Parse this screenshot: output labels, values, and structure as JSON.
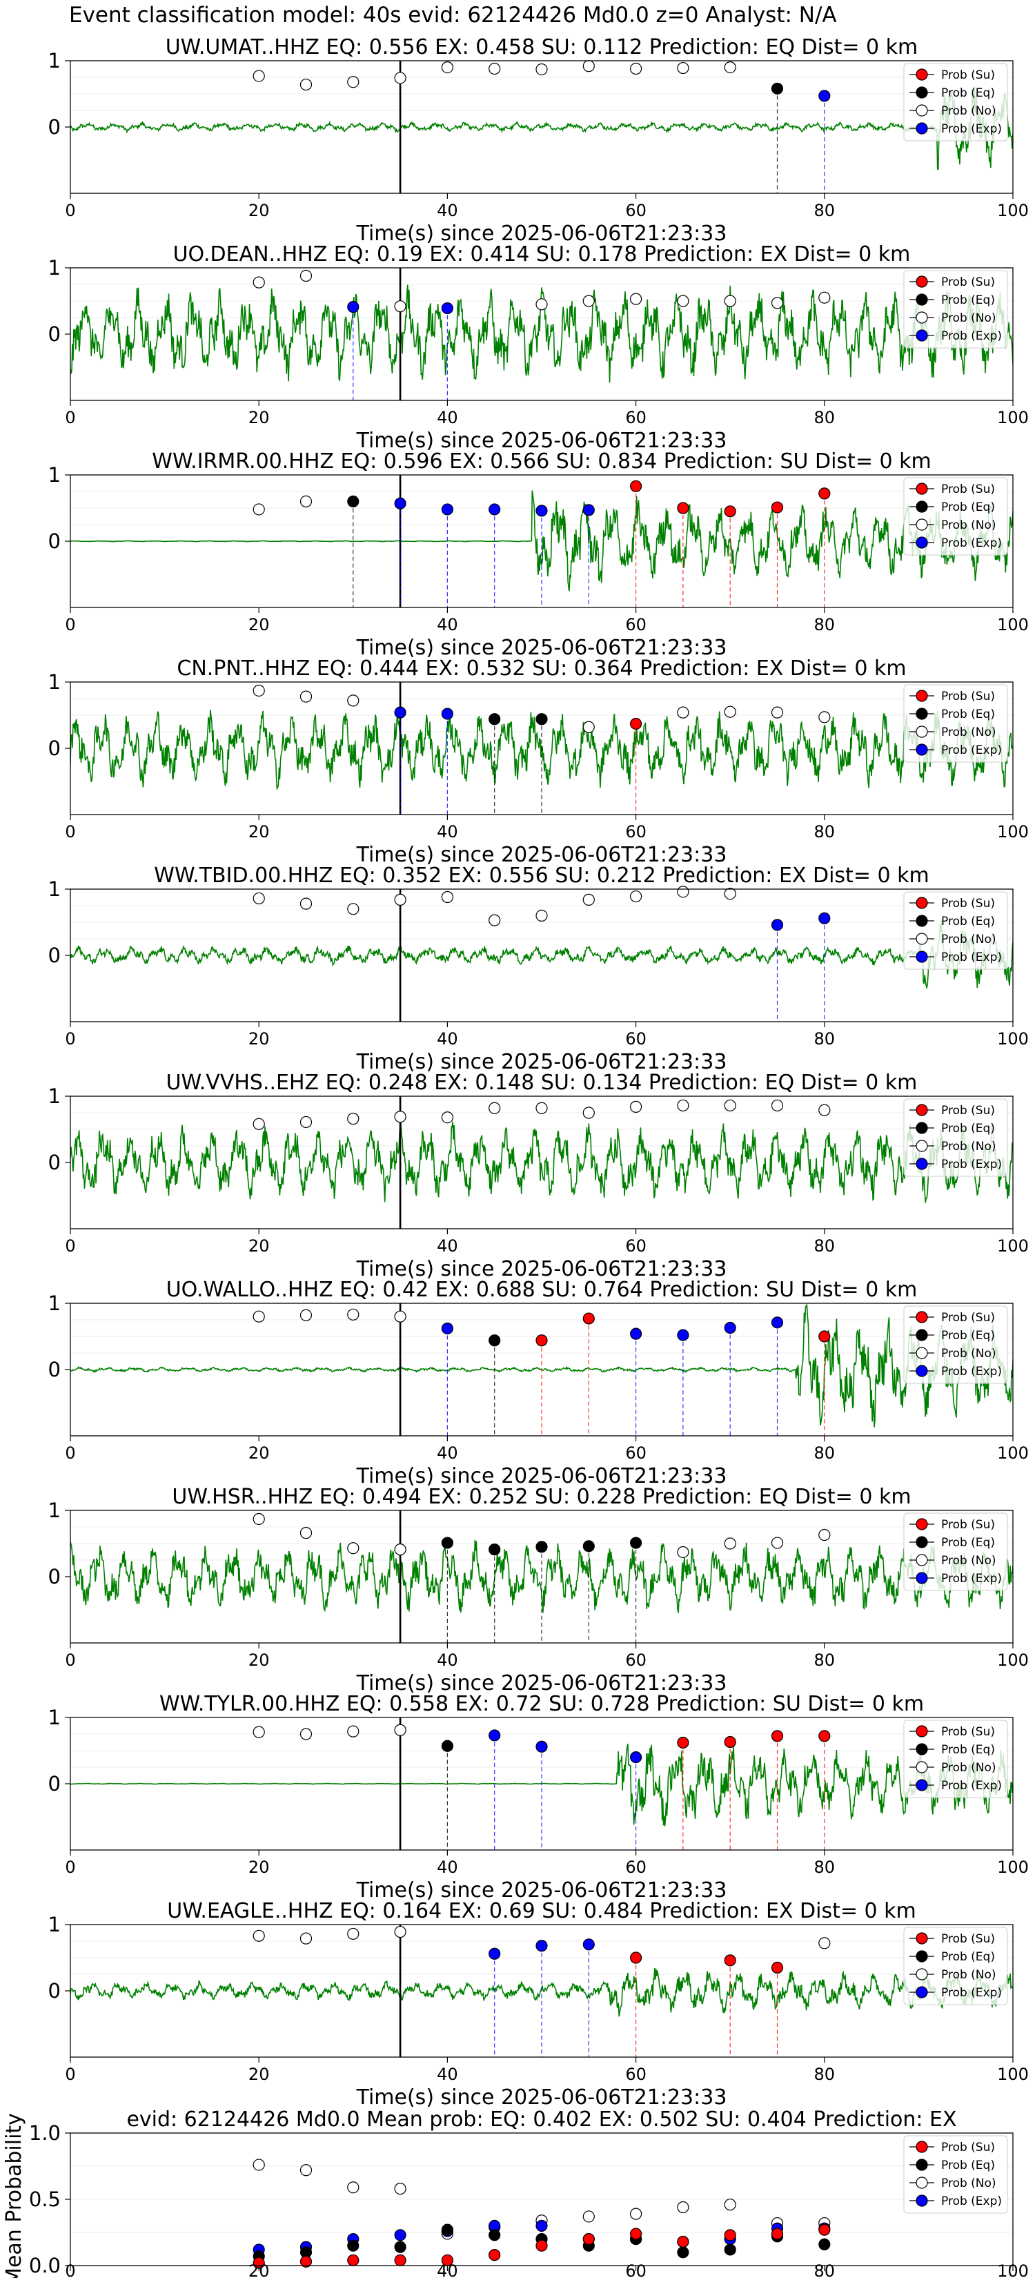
{
  "page_title": "Event classification model: 40s evid: 62124426 Md0.0 z=0 Analyst: N/A",
  "legend_labels": [
    "Prob (Su)",
    "Prob (Eq)",
    "Prob (No)",
    "Prob (Exp)"
  ],
  "colors": {
    "su": "#ff0000",
    "eq": "#000000",
    "no": "#ffffff",
    "exp": "#0000ff",
    "waveform": "#008000"
  },
  "x_axis_label": "Time(s) since 2025-06-06T21:23:33",
  "x_ticks": [
    "0",
    "20",
    "40",
    "60",
    "80",
    "100"
  ],
  "y_ticks": [
    "0",
    "1"
  ],
  "chart_data": [
    {
      "type": "line+scatter",
      "title": "UW.UMAT..HHZ   EQ: 0.556  EX: 0.458  SU: 0.112   Prediction: EQ    Dist= 0 km",
      "xlim": [
        0,
        100
      ],
      "ylim": [
        -1,
        1
      ],
      "vline": 35,
      "waveform": {
        "amplitude": 0.06,
        "burst_start": 92,
        "burst_amplitude": 0.6
      },
      "points": [
        {
          "t": 20,
          "p": 0.77,
          "c": "no"
        },
        {
          "t": 25,
          "p": 0.64,
          "c": "no"
        },
        {
          "t": 30,
          "p": 0.68,
          "c": "no"
        },
        {
          "t": 35,
          "p": 0.74,
          "c": "no"
        },
        {
          "t": 40,
          "p": 0.9,
          "c": "no"
        },
        {
          "t": 45,
          "p": 0.88,
          "c": "no"
        },
        {
          "t": 50,
          "p": 0.87,
          "c": "no"
        },
        {
          "t": 55,
          "p": 0.92,
          "c": "no"
        },
        {
          "t": 60,
          "p": 0.88,
          "c": "no"
        },
        {
          "t": 65,
          "p": 0.89,
          "c": "no"
        },
        {
          "t": 70,
          "p": 0.9,
          "c": "no"
        },
        {
          "t": 75,
          "p": 0.58,
          "c": "eq"
        },
        {
          "t": 80,
          "p": 0.47,
          "c": "exp"
        }
      ]
    },
    {
      "type": "line+scatter",
      "title": "UO.DEAN..HHZ   EQ: 0.19  EX: 0.414  SU: 0.178   Prediction: EX    Dist= 0 km",
      "xlim": [
        0,
        100
      ],
      "ylim": [
        -1,
        1
      ],
      "vline": 35,
      "waveform": {
        "amplitude": 0.6,
        "burst_start": 200,
        "burst_amplitude": 0
      },
      "points": [
        {
          "t": 20,
          "p": 0.78,
          "c": "no"
        },
        {
          "t": 25,
          "p": 0.88,
          "c": "no"
        },
        {
          "t": 30,
          "p": 0.41,
          "c": "exp"
        },
        {
          "t": 35,
          "p": 0.42,
          "c": "no"
        },
        {
          "t": 40,
          "p": 0.39,
          "c": "exp"
        },
        {
          "t": 50,
          "p": 0.45,
          "c": "no"
        },
        {
          "t": 55,
          "p": 0.5,
          "c": "no"
        },
        {
          "t": 60,
          "p": 0.53,
          "c": "no"
        },
        {
          "t": 65,
          "p": 0.5,
          "c": "no"
        },
        {
          "t": 70,
          "p": 0.5,
          "c": "no"
        },
        {
          "t": 75,
          "p": 0.47,
          "c": "no"
        },
        {
          "t": 80,
          "p": 0.55,
          "c": "no"
        }
      ]
    },
    {
      "type": "line+scatter",
      "title": "WW.IRMR.00.HHZ   EQ: 0.596  EX: 0.566  SU: 0.834   Prediction: SU    Dist= 0 km",
      "xlim": [
        0,
        100
      ],
      "ylim": [
        -1,
        1
      ],
      "vline": 35,
      "waveform": {
        "amplitude": 0.005,
        "burst_start": 49,
        "burst_amplitude": 0.7
      },
      "points": [
        {
          "t": 20,
          "p": 0.48,
          "c": "no"
        },
        {
          "t": 25,
          "p": 0.6,
          "c": "no"
        },
        {
          "t": 30,
          "p": 0.6,
          "c": "eq"
        },
        {
          "t": 35,
          "p": 0.57,
          "c": "exp"
        },
        {
          "t": 40,
          "p": 0.48,
          "c": "exp"
        },
        {
          "t": 45,
          "p": 0.48,
          "c": "exp"
        },
        {
          "t": 50,
          "p": 0.46,
          "c": "exp"
        },
        {
          "t": 55,
          "p": 0.47,
          "c": "exp"
        },
        {
          "t": 60,
          "p": 0.83,
          "c": "su"
        },
        {
          "t": 65,
          "p": 0.5,
          "c": "su"
        },
        {
          "t": 70,
          "p": 0.45,
          "c": "su"
        },
        {
          "t": 75,
          "p": 0.51,
          "c": "su"
        },
        {
          "t": 80,
          "p": 0.72,
          "c": "su"
        }
      ]
    },
    {
      "type": "line+scatter",
      "title": "CN.PNT..HHZ   EQ: 0.444  EX: 0.532  SU: 0.364   Prediction: EX    Dist= 0 km",
      "xlim": [
        0,
        100
      ],
      "ylim": [
        -1,
        1
      ],
      "vline": 35,
      "waveform": {
        "amplitude": 0.5,
        "burst_start": 200,
        "burst_amplitude": 0
      },
      "points": [
        {
          "t": 20,
          "p": 0.87,
          "c": "no"
        },
        {
          "t": 25,
          "p": 0.78,
          "c": "no"
        },
        {
          "t": 30,
          "p": 0.72,
          "c": "no"
        },
        {
          "t": 35,
          "p": 0.54,
          "c": "exp"
        },
        {
          "t": 40,
          "p": 0.52,
          "c": "exp"
        },
        {
          "t": 45,
          "p": 0.44,
          "c": "eq"
        },
        {
          "t": 50,
          "p": 0.44,
          "c": "eq"
        },
        {
          "t": 55,
          "p": 0.32,
          "c": "no"
        },
        {
          "t": 60,
          "p": 0.37,
          "c": "su"
        },
        {
          "t": 65,
          "p": 0.54,
          "c": "no"
        },
        {
          "t": 70,
          "p": 0.55,
          "c": "no"
        },
        {
          "t": 75,
          "p": 0.54,
          "c": "no"
        },
        {
          "t": 80,
          "p": 0.47,
          "c": "no"
        }
      ]
    },
    {
      "type": "line+scatter",
      "title": "WW.TBID.00.HHZ   EQ: 0.352  EX: 0.556  SU: 0.212   Prediction: EX    Dist= 0 km",
      "xlim": [
        0,
        100
      ],
      "ylim": [
        -1,
        1
      ],
      "vline": 35,
      "waveform": {
        "amplitude": 0.12,
        "burst_start": 90,
        "burst_amplitude": 0.5
      },
      "points": [
        {
          "t": 20,
          "p": 0.86,
          "c": "no"
        },
        {
          "t": 25,
          "p": 0.78,
          "c": "no"
        },
        {
          "t": 30,
          "p": 0.7,
          "c": "no"
        },
        {
          "t": 35,
          "p": 0.84,
          "c": "no"
        },
        {
          "t": 40,
          "p": 0.88,
          "c": "no"
        },
        {
          "t": 45,
          "p": 0.53,
          "c": "no"
        },
        {
          "t": 50,
          "p": 0.6,
          "c": "no"
        },
        {
          "t": 55,
          "p": 0.84,
          "c": "no"
        },
        {
          "t": 60,
          "p": 0.89,
          "c": "no"
        },
        {
          "t": 65,
          "p": 0.96,
          "c": "no"
        },
        {
          "t": 70,
          "p": 0.93,
          "c": "no"
        },
        {
          "t": 75,
          "p": 0.46,
          "c": "exp"
        },
        {
          "t": 80,
          "p": 0.56,
          "c": "exp"
        }
      ]
    },
    {
      "type": "line+scatter",
      "title": "UW.VVHS..EHZ   EQ: 0.248  EX: 0.148  SU: 0.134   Prediction: EQ    Dist= 0 km",
      "xlim": [
        0,
        100
      ],
      "ylim": [
        -1,
        1
      ],
      "vline": 35,
      "waveform": {
        "amplitude": 0.5,
        "burst_start": 200,
        "burst_amplitude": 0
      },
      "points": [
        {
          "t": 20,
          "p": 0.58,
          "c": "no"
        },
        {
          "t": 25,
          "p": 0.61,
          "c": "no"
        },
        {
          "t": 30,
          "p": 0.66,
          "c": "no"
        },
        {
          "t": 35,
          "p": 0.69,
          "c": "no"
        },
        {
          "t": 40,
          "p": 0.68,
          "c": "no"
        },
        {
          "t": 45,
          "p": 0.82,
          "c": "no"
        },
        {
          "t": 50,
          "p": 0.82,
          "c": "no"
        },
        {
          "t": 55,
          "p": 0.75,
          "c": "no"
        },
        {
          "t": 60,
          "p": 0.84,
          "c": "no"
        },
        {
          "t": 65,
          "p": 0.86,
          "c": "no"
        },
        {
          "t": 70,
          "p": 0.86,
          "c": "no"
        },
        {
          "t": 75,
          "p": 0.86,
          "c": "no"
        },
        {
          "t": 80,
          "p": 0.79,
          "c": "no"
        }
      ]
    },
    {
      "type": "line+scatter",
      "title": "UO.WALLO..HHZ   EQ: 0.42  EX: 0.688  SU: 0.764   Prediction: SU    Dist= 0 km",
      "xlim": [
        0,
        100
      ],
      "ylim": [
        -1,
        1
      ],
      "vline": 35,
      "waveform": {
        "amplitude": 0.03,
        "burst_start": 77,
        "burst_amplitude": 0.85
      },
      "points": [
        {
          "t": 20,
          "p": 0.8,
          "c": "no"
        },
        {
          "t": 25,
          "p": 0.82,
          "c": "no"
        },
        {
          "t": 30,
          "p": 0.83,
          "c": "no"
        },
        {
          "t": 35,
          "p": 0.8,
          "c": "no"
        },
        {
          "t": 40,
          "p": 0.62,
          "c": "exp"
        },
        {
          "t": 45,
          "p": 0.44,
          "c": "eq"
        },
        {
          "t": 50,
          "p": 0.44,
          "c": "su"
        },
        {
          "t": 55,
          "p": 0.77,
          "c": "su"
        },
        {
          "t": 60,
          "p": 0.54,
          "c": "exp"
        },
        {
          "t": 65,
          "p": 0.52,
          "c": "exp"
        },
        {
          "t": 70,
          "p": 0.63,
          "c": "exp"
        },
        {
          "t": 75,
          "p": 0.71,
          "c": "exp"
        },
        {
          "t": 80,
          "p": 0.5,
          "c": "su"
        }
      ]
    },
    {
      "type": "line+scatter",
      "title": "UW.HSR..HHZ   EQ: 0.494  EX: 0.252  SU: 0.228   Prediction: EQ    Dist= 0 km",
      "xlim": [
        0,
        100
      ],
      "ylim": [
        -1,
        1
      ],
      "vline": 35,
      "waveform": {
        "amplitude": 0.45,
        "burst_start": 200,
        "burst_amplitude": 0
      },
      "points": [
        {
          "t": 20,
          "p": 0.87,
          "c": "no"
        },
        {
          "t": 25,
          "p": 0.66,
          "c": "no"
        },
        {
          "t": 30,
          "p": 0.43,
          "c": "no"
        },
        {
          "t": 35,
          "p": 0.41,
          "c": "no"
        },
        {
          "t": 40,
          "p": 0.51,
          "c": "eq"
        },
        {
          "t": 45,
          "p": 0.41,
          "c": "eq"
        },
        {
          "t": 50,
          "p": 0.45,
          "c": "eq"
        },
        {
          "t": 55,
          "p": 0.46,
          "c": "eq"
        },
        {
          "t": 60,
          "p": 0.51,
          "c": "eq"
        },
        {
          "t": 65,
          "p": 0.37,
          "c": "no"
        },
        {
          "t": 70,
          "p": 0.5,
          "c": "no"
        },
        {
          "t": 75,
          "p": 0.51,
          "c": "no"
        },
        {
          "t": 80,
          "p": 0.63,
          "c": "no"
        }
      ]
    },
    {
      "type": "line+scatter",
      "title": "WW.TYLR.00.HHZ   EQ: 0.558  EX: 0.72  SU: 0.728   Prediction: SU    Dist= 0 km",
      "xlim": [
        0,
        100
      ],
      "ylim": [
        -1,
        1
      ],
      "vline": 35,
      "waveform": {
        "amplitude": 0.005,
        "burst_start": 58,
        "burst_amplitude": 0.65
      },
      "points": [
        {
          "t": 20,
          "p": 0.78,
          "c": "no"
        },
        {
          "t": 25,
          "p": 0.75,
          "c": "no"
        },
        {
          "t": 30,
          "p": 0.79,
          "c": "no"
        },
        {
          "t": 35,
          "p": 0.81,
          "c": "no"
        },
        {
          "t": 40,
          "p": 0.57,
          "c": "eq"
        },
        {
          "t": 45,
          "p": 0.73,
          "c": "exp"
        },
        {
          "t": 50,
          "p": 0.56,
          "c": "exp"
        },
        {
          "t": 60,
          "p": 0.4,
          "c": "exp"
        },
        {
          "t": 65,
          "p": 0.62,
          "c": "su"
        },
        {
          "t": 70,
          "p": 0.63,
          "c": "su"
        },
        {
          "t": 75,
          "p": 0.72,
          "c": "su"
        },
        {
          "t": 80,
          "p": 0.72,
          "c": "su"
        }
      ]
    },
    {
      "type": "line+scatter",
      "title": "UW.EAGLE..HHZ   EQ: 0.164  EX: 0.69  SU: 0.484   Prediction: EX    Dist= 0 km",
      "xlim": [
        0,
        100
      ],
      "ylim": [
        -1,
        1
      ],
      "vline": 35,
      "waveform": {
        "amplitude": 0.12,
        "burst_start": 57,
        "burst_amplitude": 0.35
      },
      "points": [
        {
          "t": 20,
          "p": 0.83,
          "c": "no"
        },
        {
          "t": 25,
          "p": 0.79,
          "c": "no"
        },
        {
          "t": 30,
          "p": 0.86,
          "c": "no"
        },
        {
          "t": 35,
          "p": 0.89,
          "c": "no"
        },
        {
          "t": 45,
          "p": 0.56,
          "c": "exp"
        },
        {
          "t": 50,
          "p": 0.68,
          "c": "exp"
        },
        {
          "t": 55,
          "p": 0.7,
          "c": "exp"
        },
        {
          "t": 60,
          "p": 0.5,
          "c": "su"
        },
        {
          "t": 70,
          "p": 0.46,
          "c": "su"
        },
        {
          "t": 75,
          "p": 0.35,
          "c": "su"
        },
        {
          "t": 80,
          "p": 0.72,
          "c": "no"
        }
      ]
    },
    {
      "type": "scatter",
      "title": "evid: 62124426  Md0.0   Mean prob:   EQ: 0.402  EX: 0.502  SU: 0.404   Prediction: EX",
      "ylabel": "Mean Probability",
      "xlim": [
        0,
        100
      ],
      "ylim": [
        0,
        1
      ],
      "y_ticks": [
        "0.0",
        "0.5",
        "1.0"
      ],
      "series": [
        {
          "name": "Prob (No)",
          "c": "no",
          "x": [
            20,
            25,
            30,
            35,
            40,
            45,
            50,
            55,
            60,
            65,
            70,
            75,
            80
          ],
          "y": [
            0.76,
            0.72,
            0.59,
            0.58,
            0.24,
            0.29,
            0.34,
            0.37,
            0.39,
            0.44,
            0.46,
            0.32,
            0.32
          ]
        },
        {
          "name": "Prob (Exp)",
          "c": "exp",
          "x": [
            20,
            25,
            30,
            35,
            40,
            45,
            50,
            55,
            60,
            65,
            70,
            75,
            80
          ],
          "y": [
            0.12,
            0.14,
            0.2,
            0.23,
            0.26,
            0.3,
            0.3,
            0.2,
            0.2,
            0.18,
            0.2,
            0.28,
            0.28
          ]
        },
        {
          "name": "Prob (Eq)",
          "c": "eq",
          "x": [
            20,
            25,
            30,
            35,
            40,
            45,
            50,
            55,
            60,
            65,
            70,
            75,
            80
          ],
          "y": [
            0.07,
            0.1,
            0.15,
            0.14,
            0.27,
            0.23,
            0.2,
            0.15,
            0.2,
            0.1,
            0.12,
            0.22,
            0.16
          ]
        },
        {
          "name": "Prob (Su)",
          "c": "su",
          "x": [
            20,
            25,
            30,
            35,
            40,
            45,
            50,
            55,
            60,
            65,
            70,
            75,
            80
          ],
          "y": [
            0.02,
            0.03,
            0.04,
            0.04,
            0.04,
            0.08,
            0.15,
            0.2,
            0.24,
            0.18,
            0.23,
            0.24,
            0.27
          ]
        }
      ]
    }
  ]
}
